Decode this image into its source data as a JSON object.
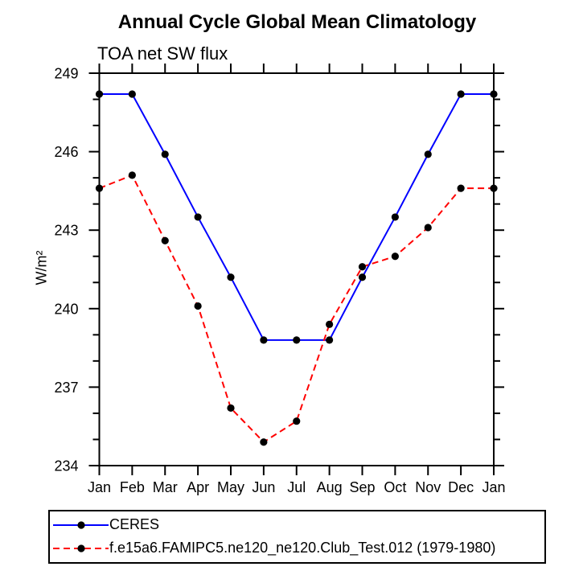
{
  "chart": {
    "title": "Annual Cycle Global Mean Climatology",
    "subtitle": "TOA net SW flux",
    "y_axis_title": "W/m²"
  },
  "legend": {
    "items": [
      {
        "label": "CERES",
        "color": "#0000ff",
        "style": "solid",
        "marker": "filled-circle",
        "marker_color": "#000000"
      },
      {
        "label": "f.e15a6.FAMIPC5.ne120_ne120.Club_Test.012 (1979-1980)",
        "color": "#ff0000",
        "style": "dashed",
        "marker": "filled-circle",
        "marker_color": "#000000"
      }
    ]
  },
  "chart_data": {
    "type": "line",
    "title": "Annual Cycle Global Mean Climatology",
    "subtitle": "TOA net SW flux",
    "xlabel": "",
    "ylabel": "W/m²",
    "categories": [
      "Jan",
      "Feb",
      "Mar",
      "Apr",
      "May",
      "Jun",
      "Jul",
      "Aug",
      "Sep",
      "Oct",
      "Nov",
      "Dec",
      "Jan"
    ],
    "series": [
      {
        "name": "CERES",
        "color": "#0000ff",
        "line_style": "solid",
        "marker": "circle",
        "marker_color": "#000000",
        "values": [
          248.2,
          248.2,
          245.9,
          243.5,
          241.2,
          238.8,
          238.8,
          238.8,
          241.2,
          243.5,
          245.9,
          248.2,
          248.2
        ]
      },
      {
        "name": "f.e15a6.FAMIPC5.ne120_ne120.Club_Test.012 (1979-1980)",
        "color": "#ff0000",
        "line_style": "dashed",
        "marker": "circle",
        "marker_color": "#000000",
        "values": [
          244.6,
          245.1,
          242.6,
          240.1,
          236.2,
          234.9,
          235.7,
          239.4,
          241.6,
          242.0,
          243.1,
          244.6,
          244.6
        ]
      }
    ],
    "ylim": [
      234,
      249
    ],
    "yticks": [
      234,
      237,
      240,
      243,
      246,
      249
    ],
    "ytick_major_step": 3,
    "ytick_minor_step": 1,
    "grid": false,
    "legend_position": "bottom",
    "axis_color": "#000000",
    "background_color": "#ffffff"
  }
}
